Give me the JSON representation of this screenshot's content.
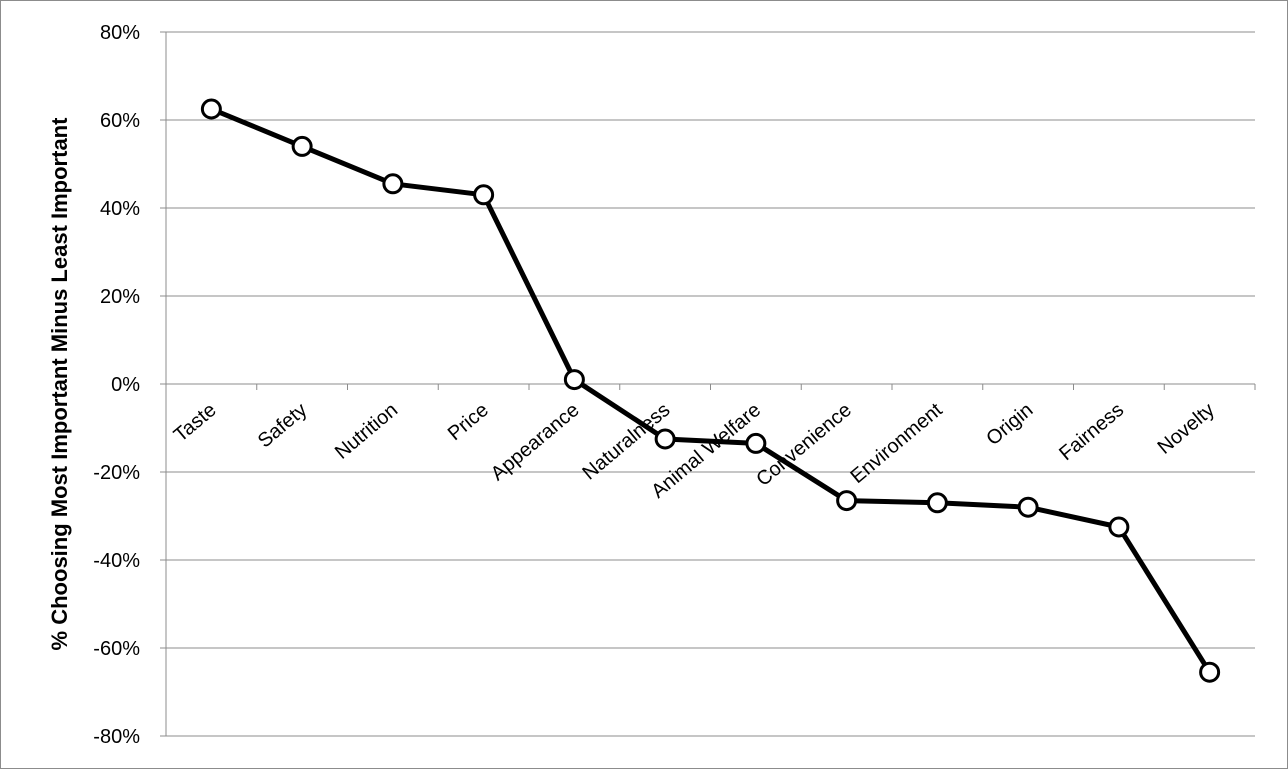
{
  "chart_data": {
    "type": "line",
    "title": "",
    "xlabel": "",
    "ylabel": "% Choosing Most Important Minus Least Important",
    "ylim": [
      -0.8,
      0.8
    ],
    "yticks": [
      0.8,
      0.6,
      0.4,
      0.2,
      0,
      -0.2,
      -0.4,
      -0.6,
      -0.8
    ],
    "ytick_labels": [
      "80%",
      "60%",
      "40%",
      "20%",
      "0%",
      "-20%",
      "-40%",
      "-60%",
      "-80%"
    ],
    "categories": [
      "Taste",
      "Safety",
      "Nutrition",
      "Price",
      "Appearance",
      "Naturalness",
      "Animal Welfare",
      "Convenience",
      "Environment",
      "Origin",
      "Fairness",
      "Novelty"
    ],
    "series": [
      {
        "values": [
          0.625,
          0.54,
          0.455,
          0.43,
          0.01,
          -0.125,
          -0.135,
          -0.265,
          -0.27,
          -0.28,
          -0.325,
          -0.655
        ]
      }
    ],
    "grid": true,
    "legend": "none",
    "line_color": "#000000",
    "marker": "open-circle"
  }
}
